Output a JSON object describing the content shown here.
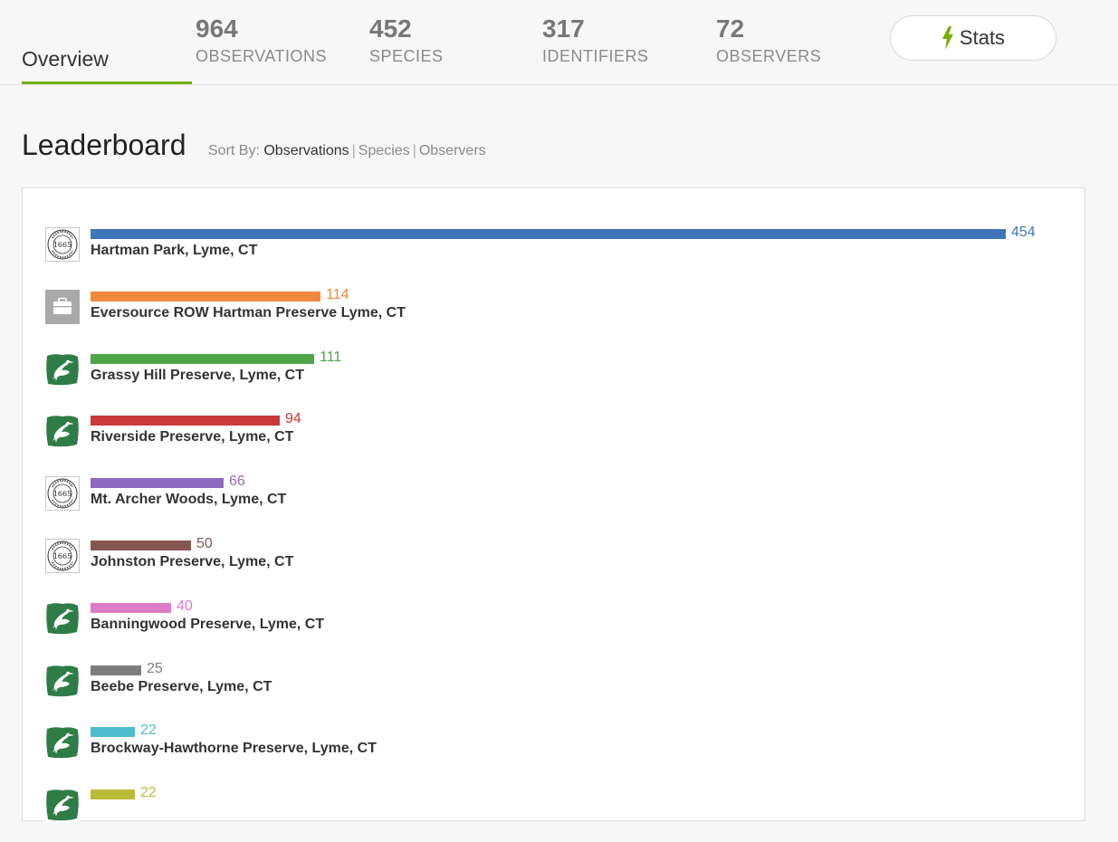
{
  "header": {
    "tab_overview": "Overview",
    "stats": [
      {
        "value": "964",
        "label": "OBSERVATIONS"
      },
      {
        "value": "452",
        "label": "SPECIES"
      },
      {
        "value": "317",
        "label": "IDENTIFIERS"
      },
      {
        "value": "72",
        "label": "OBSERVERS"
      }
    ],
    "stats_button": "Stats",
    "stats_button_icon": "lightning-bolt-icon"
  },
  "leaderboard": {
    "title": "Leaderboard",
    "sort_label": "Sort By:",
    "sort_options": [
      "Observations",
      "Species",
      "Observers"
    ],
    "active_sort": "Observations",
    "max_value": 454,
    "entries": [
      {
        "name": "Hartman Park, Lyme, CT",
        "value": 454,
        "color": "#3d77b9",
        "icon": "town-seal-icon"
      },
      {
        "name": "Eversource ROW Hartman Preserve Lyme, CT",
        "value": 114,
        "color": "#f0893a",
        "icon": "briefcase-icon"
      },
      {
        "name": "Grassy Hill Preserve, Lyme, CT",
        "value": 111,
        "color": "#4ea646",
        "icon": "heron-icon"
      },
      {
        "name": "Riverside Preserve, Lyme, CT",
        "value": 94,
        "color": "#c9393a",
        "icon": "heron-icon"
      },
      {
        "name": "Mt. Archer Woods, Lyme, CT",
        "value": 66,
        "color": "#8f68c0",
        "icon": "town-seal-icon"
      },
      {
        "name": "Johnston Preserve, Lyme, CT",
        "value": 50,
        "color": "#865651",
        "icon": "town-seal-icon"
      },
      {
        "name": "Banningwood Preserve, Lyme, CT",
        "value": 40,
        "color": "#dc7cc7",
        "icon": "heron-icon"
      },
      {
        "name": "Beebe Preserve, Lyme, CT",
        "value": 25,
        "color": "#7d7d7d",
        "icon": "heron-icon"
      },
      {
        "name": "Brockway-Hawthorne Preserve, Lyme, CT",
        "value": 22,
        "color": "#4cbccd",
        "icon": "heron-icon"
      },
      {
        "name": "",
        "value": 22,
        "color": "#bcbc3b",
        "icon": "heron-icon"
      }
    ]
  }
}
